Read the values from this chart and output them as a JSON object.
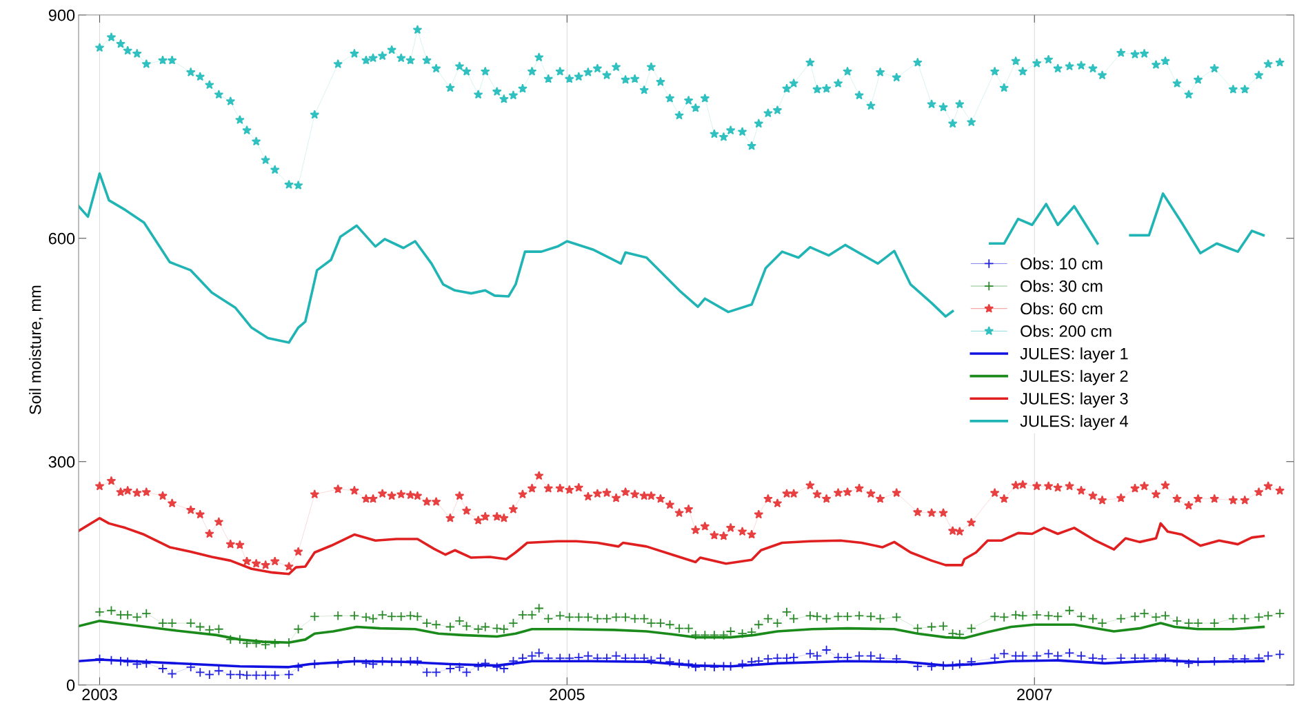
{
  "chart_data": {
    "type": "line",
    "ylabel": "Soil moisture, mm",
    "xlim": [
      2002.91,
      2008.11
    ],
    "ylim": [
      0,
      900
    ],
    "xticks": [
      2003,
      2005,
      2007
    ],
    "yticks": [
      0,
      300,
      600,
      900
    ],
    "grid": "x",
    "legend": "right",
    "x": [
      2003.0,
      2003.05,
      2003.09,
      2003.12,
      2003.16,
      2003.2,
      2003.27,
      2003.31,
      2003.39,
      2003.43,
      2003.47,
      2003.51,
      2003.56,
      2003.6,
      2003.63,
      2003.67,
      2003.71,
      2003.75,
      2003.81,
      2003.85,
      2003.92,
      2004.02,
      2004.09,
      2004.14,
      2004.17,
      2004.21,
      2004.25,
      2004.29,
      2004.33,
      2004.36,
      2004.4,
      2004.44,
      2004.5,
      2004.54,
      2004.57,
      2004.62,
      2004.65,
      2004.7,
      2004.73,
      2004.77,
      2004.81,
      2004.85,
      2004.88,
      2004.92,
      2004.97,
      2005.01,
      2005.05,
      2005.09,
      2005.13,
      2005.17,
      2005.21,
      2005.25,
      2005.29,
      2005.33,
      2005.36,
      2005.4,
      2005.44,
      2005.48,
      2005.52,
      2005.55,
      2005.59,
      2005.63,
      2005.67,
      2005.7,
      2005.75,
      2005.79,
      2005.82,
      2005.86,
      2005.9,
      2005.94,
      2005.97,
      2006.04,
      2006.07,
      2006.11,
      2006.16,
      2006.2,
      2006.25,
      2006.3,
      2006.34,
      2006.41,
      2006.5,
      2006.56,
      2006.61,
      2006.65,
      2006.68,
      2006.73,
      2006.83,
      2006.87,
      2006.92,
      2006.95,
      2007.01,
      2007.06,
      2007.1,
      2007.15,
      2007.2,
      2007.25,
      2007.29,
      2007.37,
      2007.43,
      2007.47,
      2007.52,
      2007.56,
      2007.61,
      2007.66,
      2007.7,
      2007.77,
      2007.85,
      2007.9,
      2007.96,
      2008.0,
      2008.05
    ],
    "series": [
      {
        "name": "Obs: 10 cm",
        "color": "#2020e0",
        "marker": "cross",
        "values": [
          35,
          33,
          32,
          31,
          28,
          29,
          22,
          15,
          24,
          17,
          14,
          19,
          14,
          14,
          13,
          13,
          13,
          13,
          14,
          24,
          28,
          29,
          32,
          29,
          28,
          32,
          31,
          31,
          32,
          32,
          17,
          17,
          22,
          24,
          17,
          25,
          29,
          24,
          22,
          32,
          36,
          39,
          43,
          36,
          36,
          36,
          37,
          39,
          36,
          36,
          39,
          36,
          36,
          36,
          33,
          36,
          31,
          29,
          28,
          24,
          25,
          24,
          25,
          25,
          28,
          31,
          32,
          35,
          36,
          36,
          37,
          42,
          39,
          47,
          37,
          37,
          39,
          39,
          36,
          35,
          25,
          25,
          26,
          26,
          28,
          31,
          36,
          42,
          39,
          39,
          39,
          42,
          39,
          43,
          39,
          36,
          35,
          36,
          36,
          36,
          36,
          36,
          31,
          29,
          31,
          32,
          35,
          35,
          36,
          39,
          41
        ]
      },
      {
        "name": "Obs: 30 cm",
        "color": "#2a8a2a",
        "marker": "cross",
        "values": [
          98,
          100,
          94,
          94,
          91,
          96,
          83,
          83,
          83,
          78,
          74,
          75,
          61,
          61,
          56,
          56,
          54,
          56,
          57,
          75,
          92,
          93,
          93,
          91,
          89,
          94,
          92,
          92,
          93,
          92,
          83,
          81,
          78,
          86,
          79,
          75,
          78,
          76,
          75,
          83,
          94,
          94,
          103,
          89,
          93,
          91,
          91,
          91,
          89,
          89,
          91,
          91,
          89,
          89,
          83,
          83,
          81,
          76,
          76,
          67,
          67,
          67,
          67,
          72,
          69,
          71,
          81,
          89,
          83,
          98,
          89,
          93,
          92,
          89,
          92,
          92,
          93,
          92,
          89,
          91,
          76,
          78,
          79,
          69,
          68,
          76,
          92,
          91,
          94,
          93,
          94,
          93,
          92,
          100,
          92,
          89,
          83,
          89,
          92,
          96,
          91,
          93,
          86,
          83,
          83,
          83,
          89,
          89,
          91,
          93,
          96
        ]
      },
      {
        "name": "Obs: 60 cm",
        "color": "#e84040",
        "marker": "star",
        "values": [
          267,
          274,
          259,
          261,
          258,
          259,
          254,
          244,
          235,
          229,
          203,
          219,
          189,
          188,
          166,
          163,
          161,
          166,
          159,
          179,
          256,
          263,
          261,
          250,
          250,
          257,
          254,
          256,
          255,
          254,
          246,
          246,
          224,
          254,
          234,
          221,
          226,
          226,
          224,
          236,
          256,
          264,
          281,
          264,
          264,
          262,
          265,
          253,
          257,
          258,
          251,
          259,
          256,
          254,
          254,
          250,
          242,
          231,
          236,
          208,
          213,
          201,
          200,
          211,
          206,
          202,
          229,
          250,
          244,
          257,
          257,
          268,
          256,
          250,
          258,
          259,
          264,
          257,
          250,
          258,
          232,
          231,
          231,
          207,
          206,
          218,
          258,
          250,
          268,
          269,
          267,
          267,
          265,
          267,
          261,
          254,
          248,
          251,
          264,
          267,
          256,
          268,
          250,
          241,
          250,
          250,
          248,
          248,
          259,
          267,
          261
        ]
      },
      {
        "name": "Obs: 200 cm",
        "color": "#30c0c0",
        "marker": "star",
        "values": [
          856,
          870,
          861,
          852,
          848,
          834,
          839,
          839,
          823,
          817,
          806,
          793,
          784,
          759,
          745,
          730,
          705,
          692,
          672,
          671,
          766,
          834,
          848,
          839,
          842,
          845,
          853,
          842,
          839,
          880,
          839,
          828,
          802,
          831,
          824,
          793,
          824,
          797,
          787,
          792,
          801,
          824,
          843,
          814,
          824,
          814,
          817,
          823,
          828,
          819,
          830,
          813,
          814,
          799,
          830,
          810,
          788,
          765,
          785,
          775,
          788,
          740,
          736,
          745,
          743,
          724,
          754,
          768,
          772,
          801,
          808,
          836,
          800,
          801,
          808,
          824,
          792,
          778,
          823,
          816,
          836,
          780,
          776,
          754,
          780,
          756,
          824,
          802,
          838,
          824,
          835,
          840,
          828,
          831,
          832,
          828,
          819,
          849,
          847,
          848,
          833,
          838,
          808,
          793,
          813,
          828,
          800,
          800,
          819,
          834,
          836
        ]
      },
      {
        "name": "JULES: layer 1",
        "color": "#1010e0",
        "x": [
          2002.91,
          2003.0,
          2003.2,
          2003.4,
          2003.6,
          2003.81,
          2003.9,
          2004.1,
          2004.3,
          2004.5,
          2004.7,
          2004.85,
          2005.1,
          2005.34,
          2005.55,
          2005.7,
          2005.9,
          2006.2,
          2006.45,
          2006.62,
          2006.75,
          2006.9,
          2007.1,
          2007.3,
          2007.55,
          2007.7,
          2007.98
        ],
        "values": [
          32,
          34,
          31,
          28,
          25,
          24,
          28,
          32,
          31,
          28,
          26,
          32,
          32,
          31,
          26,
          25,
          29,
          32,
          31,
          26,
          28,
          32,
          33,
          29,
          33,
          31,
          32
        ]
      },
      {
        "name": "JULES: layer 2",
        "color": "#1a8a1a",
        "x": [
          2002.91,
          2003.0,
          2003.1,
          2003.3,
          2003.5,
          2003.6,
          2003.7,
          2003.81,
          2003.88,
          2003.92,
          2004.0,
          2004.1,
          2004.2,
          2004.35,
          2004.45,
          2004.55,
          2004.7,
          2004.78,
          2004.85,
          2005.0,
          2005.2,
          2005.34,
          2005.45,
          2005.55,
          2005.7,
          2005.8,
          2005.9,
          2006.05,
          2006.2,
          2006.4,
          2006.5,
          2006.62,
          2006.7,
          2006.8,
          2006.9,
          2007.0,
          2007.17,
          2007.34,
          2007.45,
          2007.54,
          2007.6,
          2007.7,
          2007.85,
          2007.98
        ],
        "values": [
          79,
          86,
          82,
          74,
          67,
          61,
          58,
          57,
          61,
          69,
          72,
          78,
          76,
          75,
          69,
          67,
          65,
          69,
          75,
          75,
          74,
          72,
          68,
          64,
          64,
          67,
          72,
          75,
          76,
          75,
          69,
          64,
          63,
          71,
          78,
          81,
          81,
          72,
          76,
          83,
          78,
          75,
          75,
          78
        ]
      },
      {
        "name": "JULES: layer 3",
        "color": "#e02020",
        "x": [
          2002.91,
          2003.0,
          2003.04,
          2003.11,
          2003.19,
          2003.3,
          2003.39,
          2003.48,
          2003.56,
          2003.65,
          2003.74,
          2003.81,
          2003.84,
          2003.88,
          2003.92,
          2003.99,
          2004.09,
          2004.18,
          2004.27,
          2004.36,
          2004.43,
          2004.48,
          2004.52,
          2004.59,
          2004.67,
          2004.74,
          2004.78,
          2004.83,
          2004.96,
          2005.04,
          2005.13,
          2005.22,
          2005.24,
          2005.34,
          2005.45,
          2005.55,
          2005.57,
          2005.68,
          2005.79,
          2005.83,
          2005.92,
          2006.04,
          2006.17,
          2006.26,
          2006.35,
          2006.4,
          2006.47,
          2006.56,
          2006.62,
          2006.69,
          2006.7,
          2006.75,
          2006.8,
          2006.86,
          2006.93,
          2006.99,
          2007.04,
          2007.1,
          2007.17,
          2007.26,
          2007.34,
          2007.39,
          2007.45,
          2007.52,
          2007.54,
          2007.57,
          2007.63,
          2007.71,
          2007.79,
          2007.87,
          2007.93,
          2007.98
        ],
        "values": [
          207,
          224,
          217,
          211,
          202,
          185,
          179,
          172,
          167,
          156,
          151,
          149,
          158,
          159,
          178,
          187,
          202,
          194,
          196,
          196,
          183,
          175,
          181,
          171,
          172,
          169,
          178,
          191,
          193,
          193,
          191,
          186,
          191,
          186,
          175,
          165,
          171,
          163,
          168,
          181,
          191,
          193,
          194,
          191,
          185,
          192,
          178,
          167,
          161,
          161,
          169,
          178,
          194,
          194,
          204,
          203,
          211,
          203,
          211,
          194,
          182,
          197,
          192,
          197,
          217,
          206,
          202,
          187,
          194,
          189,
          198,
          200
        ]
      },
      {
        "name": "JULES: layer 4",
        "color": "#20b4b4",
        "x": [
          2002.91,
          2002.95,
          2003.0,
          2003.04,
          2003.11,
          2003.19,
          2003.3,
          2003.39,
          2003.48,
          2003.58,
          2003.65,
          2003.72,
          2003.81,
          2003.85,
          2003.88,
          2003.93,
          2003.99,
          2004.03,
          2004.1,
          2004.18,
          2004.22,
          2004.3,
          2004.35,
          2004.42,
          2004.47,
          2004.52,
          2004.59,
          2004.65,
          2004.69,
          2004.75,
          2004.78,
          2004.82,
          2004.89,
          2004.96,
          2005.0,
          2005.11,
          2005.23,
          2005.25,
          2005.34,
          2005.48,
          2005.56,
          2005.59,
          2005.69,
          2005.79,
          2005.85,
          2005.92,
          2005.99,
          2006.04,
          2006.12,
          2006.19,
          2006.33,
          2006.4,
          2006.47,
          2006.56,
          2006.62,
          2006.65,
          2006.72,
          2006.81,
          2006.87,
          2006.93,
          2006.99,
          2007.05,
          2007.1,
          2007.17,
          2007.27,
          2007.34,
          2007.41,
          2007.49,
          2007.55,
          2007.63,
          2007.71,
          2007.78,
          2007.87,
          2007.93,
          2007.98
        ],
        "values": [
          643,
          629,
          687,
          651,
          638,
          621,
          568,
          557,
          527,
          507,
          480,
          466,
          460,
          480,
          488,
          557,
          571,
          602,
          617,
          589,
          599,
          587,
          596,
          566,
          538,
          530,
          526,
          530,
          523,
          522,
          538,
          582,
          582,
          589,
          596,
          585,
          566,
          581,
          574,
          530,
          508,
          519,
          501,
          511,
          560,
          582,
          574,
          588,
          577,
          591,
          566,
          583,
          538,
          513,
          495,
          502,
          null,
          593,
          593,
          626,
          618,
          646,
          618,
          643,
          593,
          null,
          604,
          604,
          660,
          621,
          580,
          593,
          582,
          610,
          604
        ]
      }
    ]
  }
}
